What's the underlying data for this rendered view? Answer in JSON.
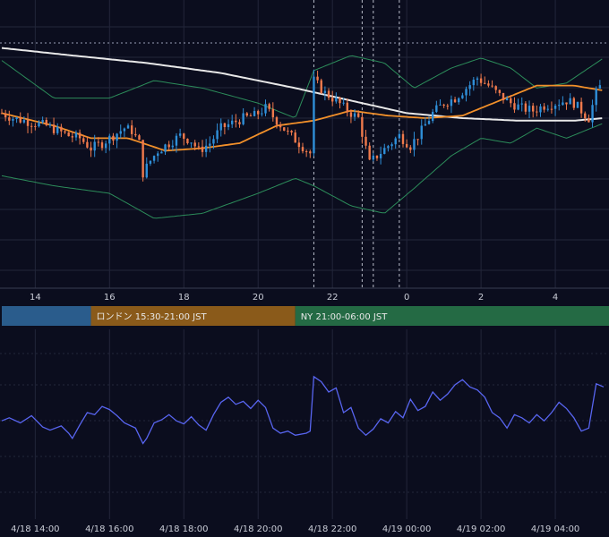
{
  "colors": {
    "background": "#0b0d1e",
    "grid": "#23263a",
    "bull": "#2f8fd8",
    "bear": "#f07a4c",
    "bollinger": "#2c8c5a",
    "ma_long": "#e8e8e8",
    "ma_mid": "#f2902a",
    "indicator": "#5865f0",
    "session_tokyo": "#2a5c8c",
    "session_london": "#8a5a1a",
    "session_ny": "#246a44"
  },
  "chart_data": [
    {
      "type": "candlestick",
      "name": "price-panel",
      "x_ticks": [
        "14",
        "16",
        "18",
        "20",
        "22",
        "0",
        "2",
        "4"
      ],
      "x_hours": [
        14,
        16,
        18,
        20,
        22,
        24,
        26,
        28
      ],
      "x_range": [
        13.1,
        29.3
      ],
      "y_range": [
        0,
        100
      ],
      "grid": true,
      "vertical_markers_hours": [
        21.5,
        22.8,
        23.1,
        23.8
      ],
      "price_level": 90,
      "closes": [
        [
          13.1,
          62
        ],
        [
          13.4,
          60
        ],
        [
          13.7,
          59
        ],
        [
          14.0,
          58
        ],
        [
          14.3,
          57
        ],
        [
          14.6,
          55
        ],
        [
          14.9,
          53
        ],
        [
          15.2,
          52
        ],
        [
          15.5,
          48
        ],
        [
          15.8,
          50
        ],
        [
          16.1,
          53
        ],
        [
          16.4,
          56
        ],
        [
          16.6,
          55
        ],
        [
          16.8,
          50
        ],
        [
          16.9,
          38
        ],
        [
          17.1,
          43
        ],
        [
          17.3,
          47
        ],
        [
          17.6,
          50
        ],
        [
          17.9,
          53
        ],
        [
          18.2,
          51
        ],
        [
          18.4,
          47
        ],
        [
          18.7,
          50
        ],
        [
          19.0,
          56
        ],
        [
          19.3,
          58
        ],
        [
          19.6,
          60
        ],
        [
          19.9,
          61
        ],
        [
          20.2,
          64
        ],
        [
          20.5,
          59
        ],
        [
          20.8,
          54
        ],
        [
          21.1,
          50
        ],
        [
          21.4,
          46
        ],
        [
          21.5,
          75
        ],
        [
          21.8,
          70
        ],
        [
          22.1,
          67
        ],
        [
          22.4,
          63
        ],
        [
          22.7,
          60
        ],
        [
          23.0,
          42
        ],
        [
          23.2,
          45
        ],
        [
          23.5,
          49
        ],
        [
          23.8,
          53
        ],
        [
          24.1,
          49
        ],
        [
          24.4,
          55
        ],
        [
          24.7,
          62
        ],
        [
          25.0,
          66
        ],
        [
          25.3,
          68
        ],
        [
          25.6,
          72
        ],
        [
          25.9,
          76
        ],
        [
          26.2,
          73
        ],
        [
          26.5,
          69
        ],
        [
          26.8,
          66
        ],
        [
          27.1,
          64
        ],
        [
          27.4,
          63
        ],
        [
          27.7,
          65
        ],
        [
          28.0,
          66
        ],
        [
          28.3,
          67
        ],
        [
          28.5,
          66
        ],
        [
          28.7,
          63
        ],
        [
          28.9,
          60
        ],
        [
          29.1,
          70
        ],
        [
          29.3,
          75
        ]
      ],
      "bollinger_upper": [
        [
          13.1,
          83
        ],
        [
          14.5,
          68
        ],
        [
          16,
          68
        ],
        [
          17.2,
          75
        ],
        [
          18.5,
          72
        ],
        [
          20,
          66
        ],
        [
          21,
          60
        ],
        [
          21.5,
          79
        ],
        [
          22.5,
          85
        ],
        [
          23.4,
          82
        ],
        [
          24.2,
          72
        ],
        [
          25.2,
          80
        ],
        [
          26,
          84
        ],
        [
          26.8,
          80
        ],
        [
          27.5,
          72
        ],
        [
          28.3,
          74
        ],
        [
          29.3,
          84
        ]
      ],
      "bollinger_lower": [
        [
          13.1,
          37
        ],
        [
          14.5,
          33
        ],
        [
          16,
          30
        ],
        [
          17.2,
          20
        ],
        [
          18.5,
          22
        ],
        [
          20,
          30
        ],
        [
          21,
          36
        ],
        [
          21.5,
          33
        ],
        [
          22.5,
          25
        ],
        [
          23.4,
          22
        ],
        [
          24.2,
          32
        ],
        [
          25.2,
          45
        ],
        [
          26,
          52
        ],
        [
          26.8,
          50
        ],
        [
          27.5,
          56
        ],
        [
          28.3,
          52
        ],
        [
          29.3,
          58
        ]
      ],
      "ma_mid": [
        [
          13.1,
          62
        ],
        [
          14.5,
          57
        ],
        [
          15.5,
          52
        ],
        [
          16.5,
          52
        ],
        [
          17.5,
          47
        ],
        [
          18.5,
          48
        ],
        [
          19.5,
          50
        ],
        [
          20.5,
          57
        ],
        [
          21.5,
          59
        ],
        [
          22.5,
          63
        ],
        [
          23.5,
          61
        ],
        [
          24.5,
          60
        ],
        [
          25.5,
          61
        ],
        [
          26.5,
          67
        ],
        [
          27.5,
          73
        ],
        [
          28.5,
          73
        ],
        [
          29.3,
          71
        ]
      ],
      "ma_long": [
        [
          13.1,
          88
        ],
        [
          15,
          85
        ],
        [
          17,
          82
        ],
        [
          19,
          78
        ],
        [
          21,
          72
        ],
        [
          22.5,
          67
        ],
        [
          24,
          62
        ],
        [
          25.5,
          60
        ],
        [
          27,
          59
        ],
        [
          28.5,
          59
        ],
        [
          29.3,
          60
        ]
      ]
    },
    {
      "type": "line",
      "name": "indicator-panel",
      "x_ticks": [
        "4/18 14:00",
        "4/18 16:00",
        "4/18 18:00",
        "4/18 20:00",
        "4/18 22:00",
        "4/19 00:00",
        "4/19 02:00",
        "4/19 04:00"
      ],
      "y_range": [
        0,
        100
      ],
      "grid": true,
      "series": [
        {
          "values": [
            [
              13.1,
              52
            ],
            [
              13.3,
              55
            ],
            [
              13.6,
              50
            ],
            [
              13.9,
              57
            ],
            [
              14.2,
              46
            ],
            [
              14.4,
              43
            ],
            [
              14.7,
              47
            ],
            [
              14.9,
              40
            ],
            [
              15.0,
              35
            ],
            [
              15.2,
              48
            ],
            [
              15.4,
              60
            ],
            [
              15.6,
              58
            ],
            [
              15.8,
              66
            ],
            [
              16.0,
              63
            ],
            [
              16.2,
              57
            ],
            [
              16.4,
              50
            ],
            [
              16.7,
              45
            ],
            [
              16.9,
              30
            ],
            [
              17.0,
              35
            ],
            [
              17.2,
              50
            ],
            [
              17.4,
              53
            ],
            [
              17.6,
              58
            ],
            [
              17.8,
              52
            ],
            [
              18.0,
              49
            ],
            [
              18.2,
              56
            ],
            [
              18.4,
              48
            ],
            [
              18.6,
              43
            ],
            [
              18.8,
              58
            ],
            [
              19.0,
              70
            ],
            [
              19.2,
              75
            ],
            [
              19.4,
              68
            ],
            [
              19.6,
              71
            ],
            [
              19.8,
              64
            ],
            [
              20.0,
              72
            ],
            [
              20.2,
              65
            ],
            [
              20.4,
              45
            ],
            [
              20.6,
              40
            ],
            [
              20.8,
              42
            ],
            [
              21.0,
              38
            ],
            [
              21.3,
              40
            ],
            [
              21.4,
              42
            ],
            [
              21.5,
              95
            ],
            [
              21.7,
              90
            ],
            [
              21.9,
              80
            ],
            [
              22.1,
              84
            ],
            [
              22.3,
              60
            ],
            [
              22.5,
              65
            ],
            [
              22.7,
              45
            ],
            [
              22.9,
              38
            ],
            [
              23.1,
              44
            ],
            [
              23.3,
              54
            ],
            [
              23.5,
              50
            ],
            [
              23.7,
              61
            ],
            [
              23.9,
              55
            ],
            [
              24.1,
              73
            ],
            [
              24.3,
              62
            ],
            [
              24.5,
              66
            ],
            [
              24.7,
              80
            ],
            [
              24.9,
              72
            ],
            [
              25.1,
              78
            ],
            [
              25.3,
              87
            ],
            [
              25.5,
              92
            ],
            [
              25.7,
              85
            ],
            [
              25.9,
              82
            ],
            [
              26.1,
              75
            ],
            [
              26.3,
              60
            ],
            [
              26.5,
              55
            ],
            [
              26.7,
              45
            ],
            [
              26.9,
              58
            ],
            [
              27.1,
              55
            ],
            [
              27.3,
              50
            ],
            [
              27.5,
              58
            ],
            [
              27.7,
              52
            ],
            [
              27.9,
              60
            ],
            [
              28.1,
              70
            ],
            [
              28.3,
              64
            ],
            [
              28.5,
              55
            ],
            [
              28.7,
              42
            ],
            [
              28.9,
              45
            ],
            [
              29.1,
              88
            ],
            [
              29.3,
              85
            ]
          ]
        }
      ]
    }
  ],
  "sessions": [
    {
      "label": "",
      "start_hour": 13.1,
      "end_hour": 15.5
    },
    {
      "label": "ロンドン 15:30-21:00 JST",
      "start_hour": 15.5,
      "end_hour": 21.0
    },
    {
      "label": "NY 21:00-06:00 JST",
      "start_hour": 21.0,
      "end_hour": 30.0
    }
  ]
}
